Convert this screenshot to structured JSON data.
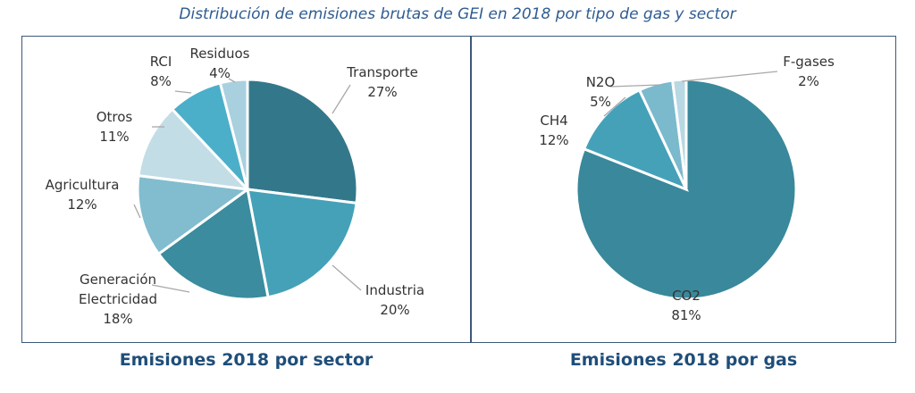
{
  "title": "Distribución de emisiones brutas de GEI en 2018 por tipo de gas y sector",
  "chart_data": [
    {
      "type": "pie",
      "title": "Emisiones 2018 por sector",
      "slices": [
        {
          "label": "Transporte",
          "value": 27,
          "display": "27%",
          "color": "#33788A"
        },
        {
          "label": "Industria",
          "value": 20,
          "display": "20%",
          "color": "#45A1B8"
        },
        {
          "label_lines": [
            "Generación",
            "Electricidad"
          ],
          "label": "Generación Electricidad",
          "value": 18,
          "display": "18%",
          "color": "#3A8C9E"
        },
        {
          "label": "Agricultura",
          "value": 12,
          "display": "12%",
          "color": "#82BCCF"
        },
        {
          "label": "Otros",
          "value": 11,
          "display": "11%",
          "color": "#C3DDE6"
        },
        {
          "label": "RCI",
          "value": 8,
          "display": "8%",
          "color": "#4CAFC9"
        },
        {
          "label": "Residuos",
          "value": 4,
          "display": "4%",
          "color": "#A9D0DE"
        }
      ]
    },
    {
      "type": "pie",
      "title": "Emisiones 2018 por gas",
      "slices": [
        {
          "label": "CO2",
          "value": 81,
          "display": "81%",
          "color": "#3A889B"
        },
        {
          "label": "CH4",
          "value": 12,
          "display": "12%",
          "color": "#45A1B8"
        },
        {
          "label": "N2O",
          "value": 5,
          "display": "5%",
          "color": "#7BB9CD"
        },
        {
          "label": "F-gases",
          "value": 2,
          "display": "2%",
          "color": "#B8D8E3"
        }
      ]
    }
  ]
}
